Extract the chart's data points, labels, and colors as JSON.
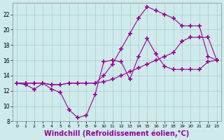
{
  "background_color": "#ceeaea",
  "grid_color": "#aacccc",
  "line_color": "#990099",
  "marker": "+",
  "marker_size": 4,
  "xlabel": "Windchill (Refroidissement éolien,°C)",
  "xlabel_fontsize": 7,
  "ylim": [
    8,
    23.5
  ],
  "xlim": [
    -0.5,
    23.5
  ],
  "yticks": [
    8,
    10,
    12,
    14,
    16,
    18,
    20,
    22
  ],
  "xticks": [
    0,
    1,
    2,
    3,
    4,
    5,
    6,
    7,
    8,
    9,
    10,
    11,
    12,
    13,
    14,
    15,
    16,
    17,
    18,
    19,
    20,
    21,
    22,
    23
  ],
  "series": [
    {
      "x": [
        0,
        1,
        2,
        3,
        4,
        5,
        6,
        7,
        8,
        9,
        10,
        11,
        12,
        13,
        14,
        15,
        16,
        17,
        18,
        19,
        20,
        21,
        22,
        23
      ],
      "y": [
        13,
        12.8,
        12.2,
        13,
        12.2,
        11.8,
        9.5,
        8.5,
        8.8,
        11.5,
        15.8,
        16.0,
        15.8,
        13.5,
        16.5,
        18.8,
        16.8,
        15.2,
        14.8,
        14.8,
        14.8,
        14.8,
        15.8,
        16.0
      ]
    },
    {
      "x": [
        0,
        1,
        2,
        3,
        4,
        5,
        6,
        7,
        8,
        9,
        10,
        11,
        12,
        13,
        14,
        15,
        16,
        17,
        18,
        19,
        20,
        21,
        22,
        23
      ],
      "y": [
        13,
        13,
        13,
        13,
        12.8,
        12.8,
        13,
        13,
        13,
        13,
        14.0,
        15.5,
        17.5,
        19.5,
        21.5,
        23.0,
        22.5,
        22.0,
        21.5,
        20.5,
        20.5,
        20.5,
        16.5,
        16.0
      ]
    },
    {
      "x": [
        0,
        1,
        2,
        3,
        4,
        5,
        6,
        7,
        8,
        9,
        10,
        11,
        12,
        13,
        14,
        15,
        16,
        17,
        18,
        19,
        20,
        21,
        22,
        23
      ],
      "y": [
        13,
        13,
        13,
        13,
        12.8,
        12.8,
        13,
        13,
        13,
        13,
        13.2,
        13.5,
        14.0,
        14.5,
        15.0,
        15.5,
        16.0,
        16.5,
        17.0,
        18.5,
        19.0,
        19.0,
        19.0,
        16.0
      ]
    }
  ]
}
